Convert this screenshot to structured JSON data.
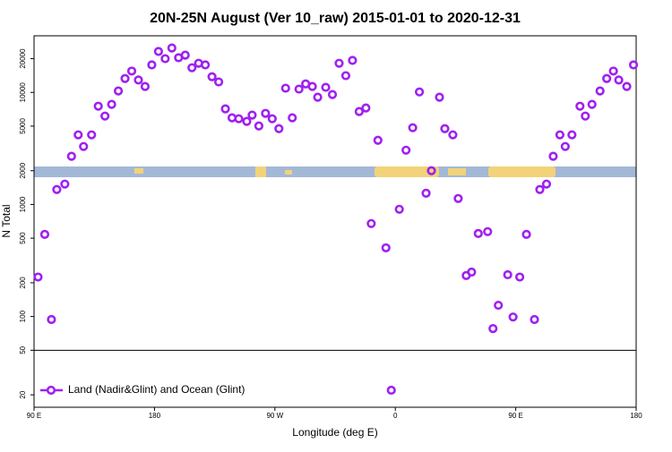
{
  "chart_data": {
    "type": "scatter",
    "title": "20N-25N August (Ver 10_raw)   2015-01-01 to 2020-12-31",
    "x_label": "Longitude (deg E)",
    "y_label": "N Total",
    "log_y": true,
    "legend": "bottom-left",
    "hline": 50,
    "xlim": [
      90,
      540
    ],
    "ylim": [
      15.5,
      32000
    ],
    "xticks": [
      {
        "value": 90,
        "label": "90 E"
      },
      180,
      {
        "value": 270,
        "label": "90 W"
      },
      {
        "value": 360,
        "label": "0"
      },
      {
        "value": 450,
        "label": "90 E"
      },
      {
        "value": 540,
        "label": "180"
      }
    ],
    "yticks": [
      20,
      50,
      100,
      200,
      500,
      1000,
      2000,
      5000,
      10000,
      20000
    ],
    "x": [
      93,
      98,
      103,
      107,
      113,
      118,
      123,
      127,
      133,
      138,
      143,
      148,
      153,
      158,
      163,
      168,
      173,
      178,
      183,
      188,
      193,
      198,
      203,
      208,
      213,
      218,
      223,
      228,
      233,
      238,
      243,
      249,
      253,
      258,
      263,
      268,
      273,
      278,
      283,
      288,
      293,
      298,
      302,
      308,
      313,
      318,
      323,
      328,
      333,
      338,
      342,
      347,
      353,
      357,
      363,
      368,
      373,
      378,
      383,
      387,
      393,
      397,
      403,
      407,
      413,
      417,
      422,
      429,
      433,
      437,
      444,
      448,
      453,
      458,
      464,
      468,
      473,
      478,
      483,
      487,
      492,
      498,
      502,
      507,
      513,
      518,
      523,
      527,
      533,
      538
    ],
    "series": [
      {
        "name": "Land (Nadir&Glint) and Ocean (Glint)",
        "color": "#a020f0",
        "values": [
          225,
          541,
          94,
          1360,
          1520,
          2690,
          4180,
          3290,
          4180,
          7530,
          6150,
          7820,
          10300,
          13300,
          15500,
          12900,
          11300,
          17600,
          23200,
          20000,
          24900,
          20400,
          21500,
          16600,
          18200,
          17600,
          13800,
          12400,
          7130,
          5930,
          5820,
          5510,
          6270,
          5020,
          6500,
          5820,
          4750,
          10900,
          5930,
          10700,
          11900,
          11300,
          9060,
          11100,
          9570,
          18200,
          14100,
          19300,
          6750,
          7260,
          675,
          3740,
          410,
          22,
          906,
          3050,
          4840,
          10100,
          1260,
          2000,
          9060,
          4750,
          4180,
          1130,
          232,
          249,
          551,
          572,
          78,
          126,
          236,
          99,
          225,
          541,
          94,
          1360,
          1520,
          2690,
          4180,
          3290,
          4180,
          7530,
          6150,
          7820,
          10300,
          13300,
          15500,
          12900,
          11300,
          17600
        ]
      }
    ]
  }
}
